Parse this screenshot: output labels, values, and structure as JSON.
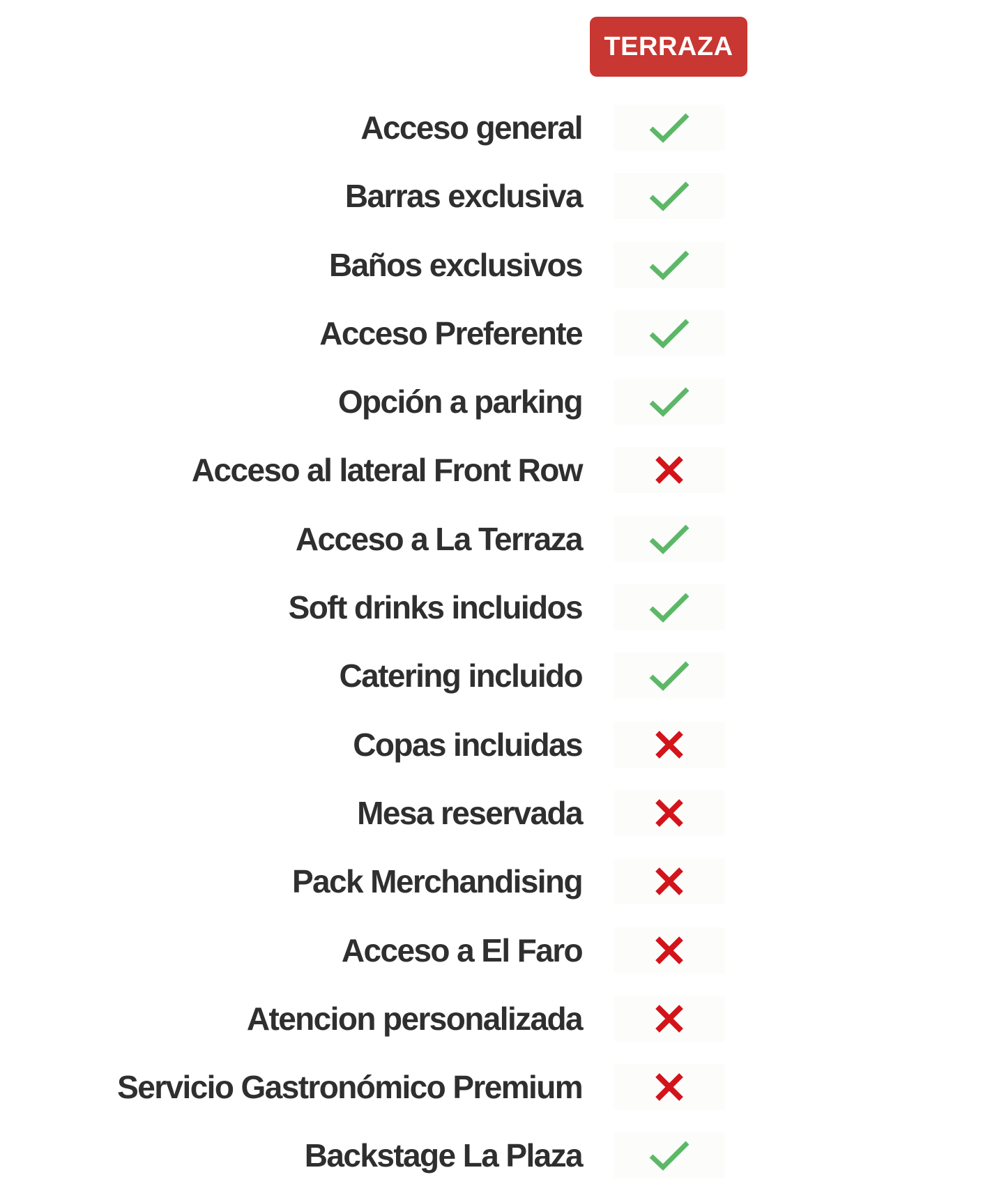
{
  "header": {
    "label": "TERRAZA",
    "color": "#c83732"
  },
  "colors": {
    "check": "#5cb867",
    "cross": "#d3141a",
    "label_text": "#2f2f2f"
  },
  "rows": [
    {
      "label": "Acceso general",
      "included": true,
      "icon": "check-icon"
    },
    {
      "label": "Barras exclusiva",
      "included": true,
      "icon": "check-icon"
    },
    {
      "label": "Baños exclusivos",
      "included": true,
      "icon": "check-icon"
    },
    {
      "label": "Acceso Preferente",
      "included": true,
      "icon": "check-icon"
    },
    {
      "label": "Opción a parking",
      "included": true,
      "icon": "check-icon"
    },
    {
      "label": "Acceso al lateral Front Row",
      "included": false,
      "icon": "cross-icon"
    },
    {
      "label": "Acceso a La Terraza",
      "included": true,
      "icon": "check-icon"
    },
    {
      "label": "Soft drinks incluidos",
      "included": true,
      "icon": "check-icon"
    },
    {
      "label": "Catering incluido",
      "included": true,
      "icon": "check-icon"
    },
    {
      "label": "Copas incluidas",
      "included": false,
      "icon": "cross-icon"
    },
    {
      "label": "Mesa reservada",
      "included": false,
      "icon": "cross-icon"
    },
    {
      "label": "Pack Merchandising",
      "included": false,
      "icon": "cross-icon"
    },
    {
      "label": "Acceso a El Faro",
      "included": false,
      "icon": "cross-icon"
    },
    {
      "label": "Atencion personalizada",
      "included": false,
      "icon": "cross-icon"
    },
    {
      "label": "Servicio Gastronómico Premium",
      "included": false,
      "icon": "cross-icon"
    },
    {
      "label": "Backstage La Plaza",
      "included": true,
      "icon": "check-icon"
    }
  ]
}
